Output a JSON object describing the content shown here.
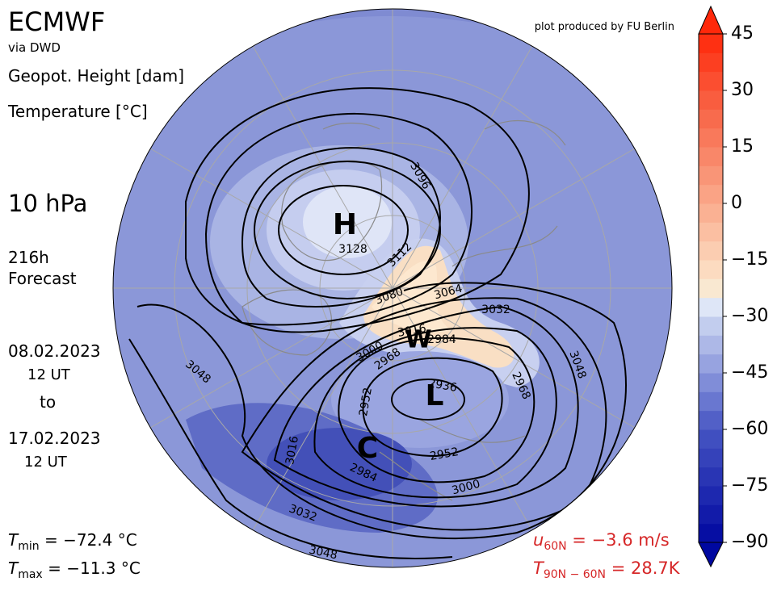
{
  "header": {
    "title": "ECMWF",
    "source": "via DWD",
    "credit": "plot produced by FU Berlin"
  },
  "fields": [
    "Geopot. Height [dam]",
    "Temperature [°C]"
  ],
  "level": "10 hPa",
  "forecast": [
    "216h",
    "Forecast"
  ],
  "period": {
    "start_date": "08.02.2023",
    "start_time": "12 UT",
    "to": "to",
    "end_date": "17.02.2023",
    "end_time": "12 UT"
  },
  "stats": {
    "tmin": {
      "symbol": "T",
      "subscript": "min",
      "text": " =  −72.4 °C"
    },
    "tmax": {
      "symbol": "T",
      "subscript": "max",
      "text": " =  −11.3 °C"
    },
    "u60n": {
      "symbol": "u",
      "subscript": "60N",
      "text": " = −3.6 m/s"
    },
    "t90n": {
      "symbol": "T",
      "subscript": "90N − 60N",
      "text": " = 28.7K"
    }
  },
  "map": {
    "systems": [
      "H",
      "L",
      "W",
      "C"
    ],
    "contour_labels": [
      3096,
      3128,
      3112,
      3080,
      3064,
      3032,
      3016,
      2984,
      3000,
      2968,
      3048,
      2936,
      2968,
      2952,
      2952,
      3016,
      2984,
      3000,
      3048,
      3032,
      3048
    ]
  },
  "colorbar": {
    "lim": [
      -90,
      45
    ],
    "step": 5,
    "ticks": [
      45,
      30,
      15,
      0,
      {
        "value": -15,
        "label": "−15"
      },
      {
        "value": -30,
        "label": "−30"
      },
      {
        "value": -45,
        "label": "−45"
      },
      {
        "value": -60,
        "label": "−60"
      },
      {
        "value": -75,
        "label": "−75"
      },
      {
        "value": -90,
        "label": "−90"
      }
    ]
  }
}
